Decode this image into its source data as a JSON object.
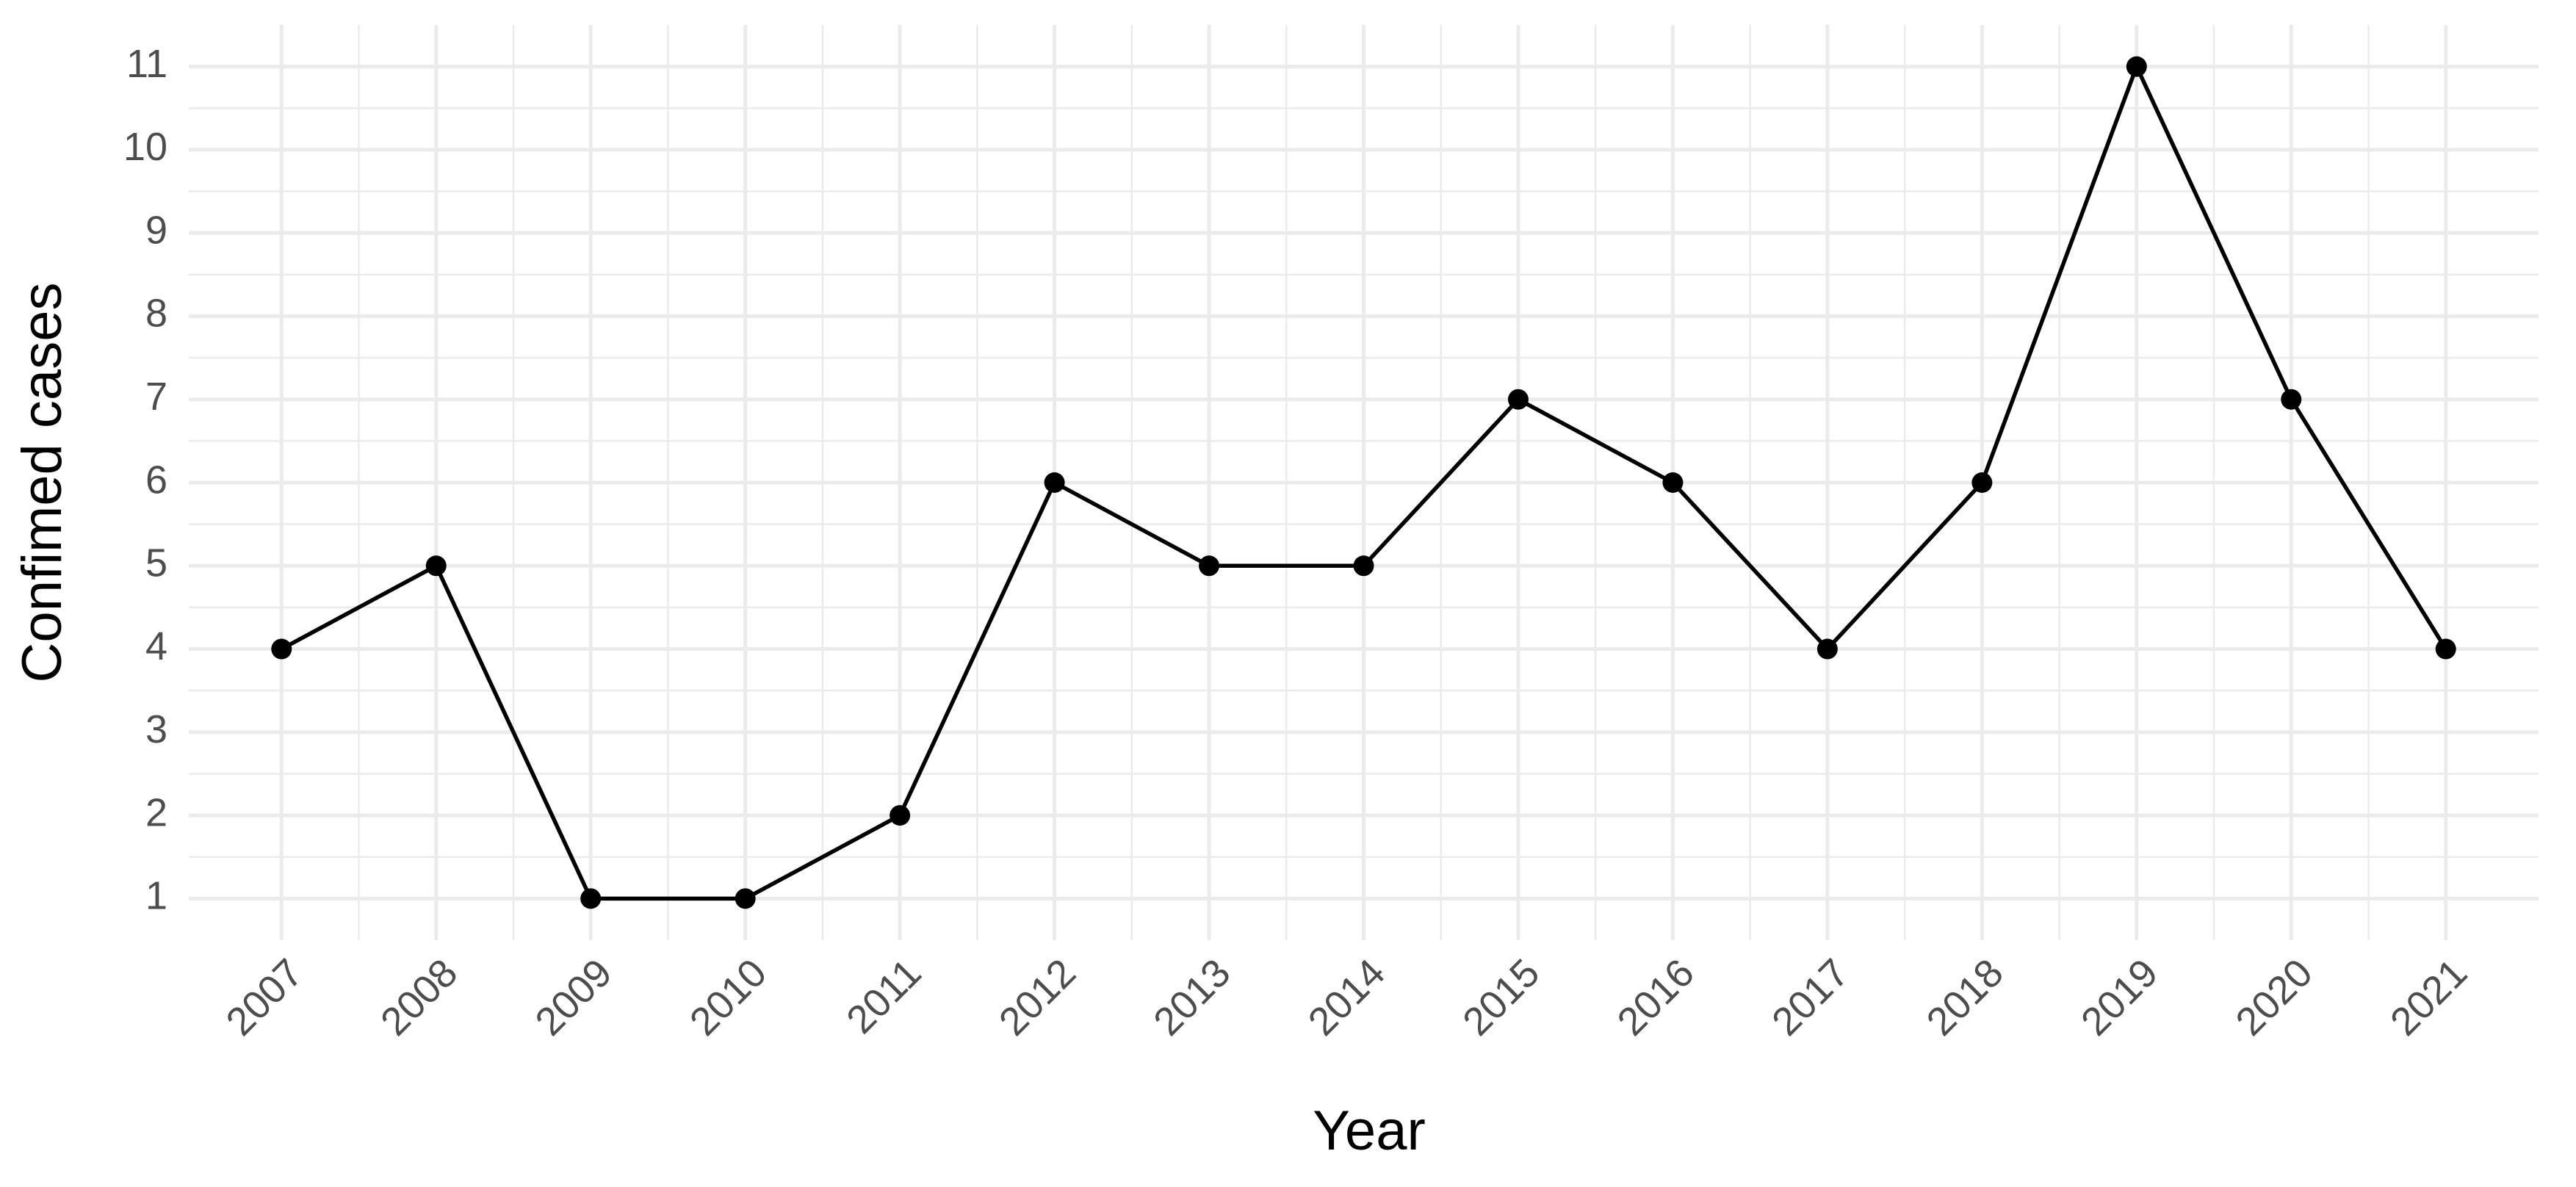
{
  "chart_data": {
    "type": "line",
    "x_label": "Year",
    "y_label": "Confimed cases",
    "categories": [
      "2007",
      "2008",
      "2009",
      "2010",
      "2011",
      "2012",
      "2013",
      "2014",
      "2015",
      "2016",
      "2017",
      "2018",
      "2019",
      "2020",
      "2021"
    ],
    "values": [
      4,
      5,
      1,
      1,
      2,
      6,
      5,
      5,
      7,
      6,
      4,
      6,
      11,
      7,
      4
    ],
    "color": "#000000",
    "markers": true,
    "ylim": [
      0.5,
      11.5
    ],
    "yticks": [
      1,
      2,
      3,
      4,
      5,
      6,
      7,
      8,
      9,
      10,
      11
    ],
    "grid": true
  }
}
